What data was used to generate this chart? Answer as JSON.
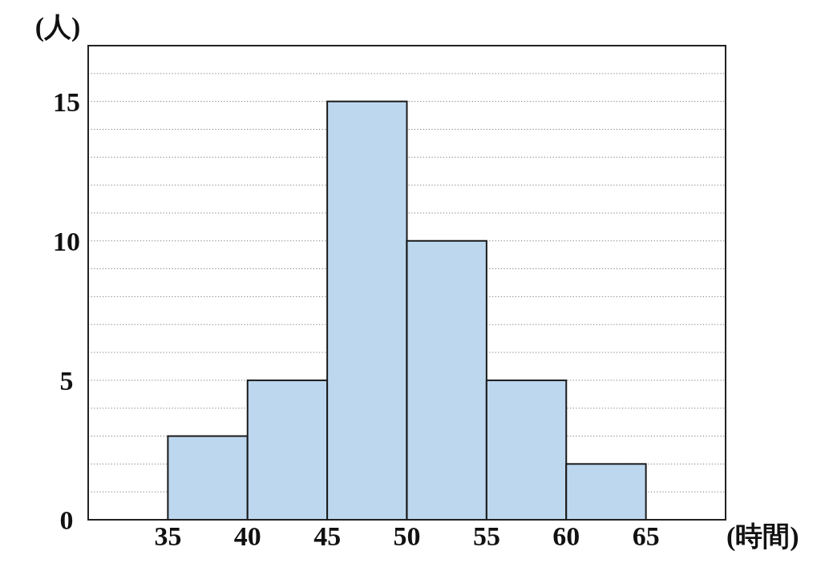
{
  "chart_data": {
    "type": "histogram",
    "bins": [
      35,
      40,
      45,
      50,
      55,
      60,
      65
    ],
    "values": [
      3,
      5,
      15,
      10,
      5,
      2
    ],
    "color": "#bdd7ee",
    "xlabel": "(時間)",
    "ylabel": "(人)",
    "xlim": [
      30,
      70
    ],
    "xticks": [
      35,
      40,
      45,
      50,
      55,
      60,
      65
    ],
    "ylim": [
      0,
      17
    ],
    "yticks": [
      0,
      {
        "value": 1,
        "label": null
      },
      {
        "value": 2,
        "label": null
      },
      {
        "value": 3,
        "label": null
      },
      {
        "value": 4,
        "label": null
      },
      5,
      {
        "value": 6,
        "label": null
      },
      {
        "value": 7,
        "label": null
      },
      {
        "value": 8,
        "label": null
      },
      {
        "value": 9,
        "label": null
      },
      10,
      {
        "value": 11,
        "label": null
      },
      {
        "value": 12,
        "label": null
      },
      {
        "value": 13,
        "label": null
      },
      {
        "value": 14,
        "label": null
      },
      15,
      {
        "value": 16,
        "label": null
      }
    ],
    "grid": "y"
  }
}
